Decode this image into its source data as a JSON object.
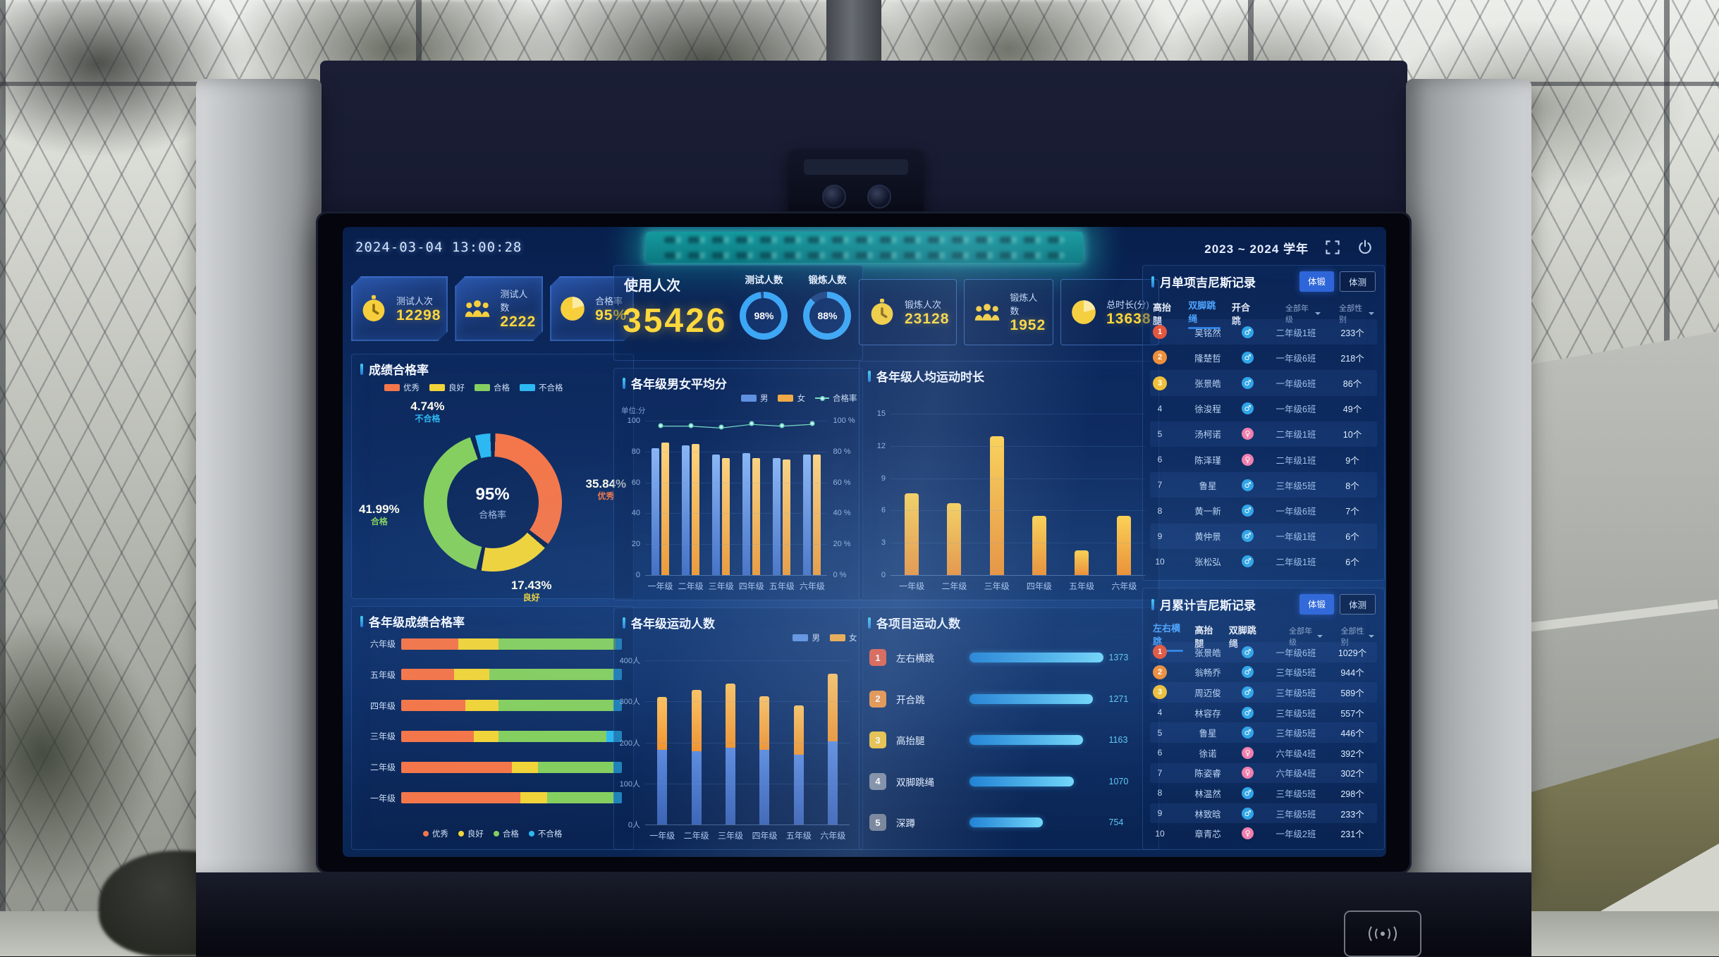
{
  "topbar": {
    "datetime": "2024-03-04 13:00:28",
    "school_year": "2023 ~ 2024 学年"
  },
  "stats_left": {
    "items": [
      {
        "icon": "stopwatch",
        "label": "测试人次",
        "value": "12298"
      },
      {
        "icon": "people",
        "label": "测试人数",
        "value": "2222"
      },
      {
        "icon": "pie",
        "label": "合格率",
        "value": "95%"
      }
    ]
  },
  "usage": {
    "title": "使用人次",
    "value": "35426",
    "gauges": [
      {
        "label": "测试人数",
        "percent": 98,
        "text": "98%"
      },
      {
        "label": "锻炼人数",
        "percent": 88,
        "text": "88%"
      }
    ]
  },
  "stats_right": {
    "items": [
      {
        "icon": "stopwatch",
        "label": "锻炼人次",
        "value": "23128"
      },
      {
        "icon": "people",
        "label": "锻炼人数",
        "value": "1952"
      },
      {
        "icon": "pie",
        "label": "总时长(分)",
        "value": "13638"
      }
    ]
  },
  "panels": {
    "pass_rate": {
      "title": "成绩合格率",
      "legend": {
        "items": [
          {
            "label": "优秀",
            "color": "#f3774b",
            "type": "sw"
          },
          {
            "label": "良好",
            "color": "#f0d43a",
            "type": "sw"
          },
          {
            "label": "合格",
            "color": "#85cf60",
            "type": "sw"
          },
          {
            "label": "不合格",
            "color": "#2db8f2",
            "type": "sw"
          }
        ]
      },
      "center_value": "95%",
      "center_label": "合格率",
      "slices": [
        {
          "label": "优秀",
          "value": 35.84,
          "display": "35.84%",
          "color": "#f3774b"
        },
        {
          "label": "良好",
          "value": 17.43,
          "display": "17.43%",
          "color": "#f0d43a"
        },
        {
          "label": "合格",
          "value": 41.99,
          "display": "41.99%",
          "color": "#85cf60"
        },
        {
          "label": "不合格",
          "value": 4.74,
          "display": "4.74%",
          "color": "#2db8f2"
        }
      ]
    },
    "avg_score": {
      "title": "各年级男女平均分",
      "unit_label": "单位:分",
      "legend": {
        "items": [
          {
            "label": "男",
            "color": "#5d8fe0",
            "type": "sw"
          },
          {
            "label": "女",
            "color": "#f5a83d",
            "type": "sw"
          },
          {
            "label": "合格率",
            "color": "#74dcc4",
            "type": "ln"
          }
        ]
      },
      "categories": [
        "一年级",
        "二年级",
        "三年级",
        "四年级",
        "五年级",
        "六年级"
      ],
      "male": [
        82,
        84,
        78,
        79,
        76,
        78
      ],
      "female": [
        86,
        85,
        76,
        76,
        75,
        78
      ],
      "line": [
        97,
        97,
        96,
        98,
        97,
        98
      ],
      "left_ticks": [
        "100",
        "80",
        "60",
        "40",
        "20",
        "0"
      ],
      "right_ticks": [
        "100 %",
        "80 %",
        "60 %",
        "40 %",
        "20 %",
        "0 %"
      ]
    },
    "avg_duration": {
      "title": "各年级人均运动时长",
      "categories": [
        "一年级",
        "二年级",
        "三年级",
        "四年级",
        "五年级",
        "六年级"
      ],
      "values": [
        7.6,
        6.7,
        12.9,
        5.5,
        2.3,
        5.5
      ],
      "max": 15,
      "y_ticks": [
        "15",
        "12",
        "9",
        "6",
        "3",
        "0"
      ]
    },
    "grade_pass": {
      "title": "各年级成绩合格率",
      "colors": [
        "#f3774b",
        "#f0d43a",
        "#85cf60",
        "#2db8f2"
      ],
      "rows": [
        {
          "label": "六年级",
          "segments": [
            26,
            18,
            53,
            3
          ]
        },
        {
          "label": "五年级",
          "segments": [
            24,
            16,
            56,
            4
          ]
        },
        {
          "label": "四年级",
          "segments": [
            29,
            15,
            52,
            4
          ]
        },
        {
          "label": "三年级",
          "segments": [
            33,
            11,
            49,
            7
          ]
        },
        {
          "label": "二年级",
          "segments": [
            50,
            12,
            34,
            4
          ]
        },
        {
          "label": "一年级",
          "segments": [
            54,
            12,
            30,
            4
          ]
        }
      ],
      "legend": {
        "items": [
          {
            "label": "优秀",
            "color": "#f3774b",
            "type": "dot"
          },
          {
            "label": "良好",
            "color": "#f0d43a",
            "type": "dot"
          },
          {
            "label": "合格",
            "color": "#85cf60",
            "type": "dot"
          },
          {
            "label": "不合格",
            "color": "#2db8f2",
            "type": "dot"
          }
        ]
      }
    },
    "sport_count": {
      "title": "各年级运动人数",
      "legend": {
        "items": [
          {
            "label": "男",
            "color": "#5d8fe0",
            "type": "sw"
          },
          {
            "label": "女",
            "color": "#f5a83d",
            "type": "sw"
          }
        ]
      },
      "categories": [
        "一年级",
        "二年级",
        "三年级",
        "四年级",
        "五年级",
        "六年级"
      ],
      "male": [
        182,
        178,
        188,
        182,
        170,
        202
      ],
      "female": [
        128,
        150,
        156,
        130,
        120,
        166
      ],
      "max": 400,
      "y_ticks": [
        "400人",
        "300人",
        "200人",
        "100人",
        "0人"
      ]
    },
    "project_count": {
      "title": "各项目运动人数",
      "max": 1373,
      "badge_colors": [
        "#e4573f",
        "#ee8f3c",
        "#efc13a",
        "#7e8aa0",
        "#747e92"
      ],
      "items": [
        {
          "rank": "1",
          "label": "左右横跳",
          "value": 1373,
          "display": "1373"
        },
        {
          "rank": "2",
          "label": "开合跳",
          "value": 1271,
          "display": "1271"
        },
        {
          "rank": "3",
          "label": "高抬腿",
          "value": 1163,
          "display": "1163"
        },
        {
          "rank": "4",
          "label": "双脚跳绳",
          "value": 1070,
          "display": "1070"
        },
        {
          "rank": "5",
          "label": "深蹲",
          "value": 754,
          "display": "754"
        }
      ]
    },
    "monthly_single": {
      "title": "月单项吉尼斯记录",
      "buttons": [
        {
          "label": "体锻",
          "active": true
        },
        {
          "label": "体测",
          "active": false
        }
      ],
      "tabs": [
        "高抬腿",
        "双脚跳绳",
        "开合跳"
      ],
      "active_tab_index": 1,
      "filters": [
        "全部年级",
        "全部性别"
      ],
      "rows": [
        {
          "rank": 1,
          "name": "吴铭然",
          "gender": "male",
          "class": "二年级1班",
          "count": "233个"
        },
        {
          "rank": 2,
          "name": "隆楚哲",
          "gender": "male",
          "class": "一年级6班",
          "count": "218个"
        },
        {
          "rank": 3,
          "name": "张景皓",
          "gender": "male",
          "class": "一年级6班",
          "count": "86个"
        },
        {
          "rank": 4,
          "name": "徐浚程",
          "gender": "male",
          "class": "一年级6班",
          "count": "49个"
        },
        {
          "rank": 5,
          "name": "汤柯诺",
          "gender": "female",
          "class": "二年级1班",
          "count": "10个"
        },
        {
          "rank": 6,
          "name": "陈泽瑾",
          "gender": "female",
          "class": "二年级1班",
          "count": "9个"
        },
        {
          "rank": 7,
          "name": "鲁星",
          "gender": "male",
          "class": "三年级5班",
          "count": "8个"
        },
        {
          "rank": 8,
          "name": "黄一新",
          "gender": "male",
          "class": "一年级6班",
          "count": "7个"
        },
        {
          "rank": 9,
          "name": "黄仲景",
          "gender": "male",
          "class": "一年级1班",
          "count": "6个"
        },
        {
          "rank": 10,
          "name": "张松弘",
          "gender": "male",
          "class": "二年级1班",
          "count": "6个"
        }
      ]
    },
    "monthly_total": {
      "title": "月累计吉尼斯记录",
      "buttons": [
        {
          "label": "体锻",
          "active": true
        },
        {
          "label": "体测",
          "active": false
        }
      ],
      "tabs": [
        "左右横跳",
        "高抬腿",
        "双脚跳绳"
      ],
      "active_tab_index": 0,
      "filters": [
        "全部年级",
        "全部性别"
      ],
      "rows": [
        {
          "rank": 1,
          "name": "张景皓",
          "gender": "male",
          "class": "一年级6班",
          "count": "1029个"
        },
        {
          "rank": 2,
          "name": "翁畅乔",
          "gender": "male",
          "class": "三年级5班",
          "count": "944个"
        },
        {
          "rank": 3,
          "name": "周迈俊",
          "gender": "male",
          "class": "三年级5班",
          "count": "589个"
        },
        {
          "rank": 4,
          "name": "林容存",
          "gender": "male",
          "class": "三年级5班",
          "count": "557个"
        },
        {
          "rank": 5,
          "name": "鲁星",
          "gender": "male",
          "class": "三年级5班",
          "count": "446个"
        },
        {
          "rank": 6,
          "name": "徐诺",
          "gender": "female",
          "class": "六年级4班",
          "count": "392个"
        },
        {
          "rank": 7,
          "name": "陈姿睿",
          "gender": "female",
          "class": "六年级4班",
          "count": "302个"
        },
        {
          "rank": 8,
          "name": "林温然",
          "gender": "male",
          "class": "三年级5班",
          "count": "298个"
        },
        {
          "rank": 9,
          "name": "林致晗",
          "gender": "male",
          "class": "三年级5班",
          "count": "233个"
        },
        {
          "rank": 10,
          "name": "章青芯",
          "gender": "female",
          "class": "一年级2班",
          "count": "231个"
        }
      ]
    }
  }
}
